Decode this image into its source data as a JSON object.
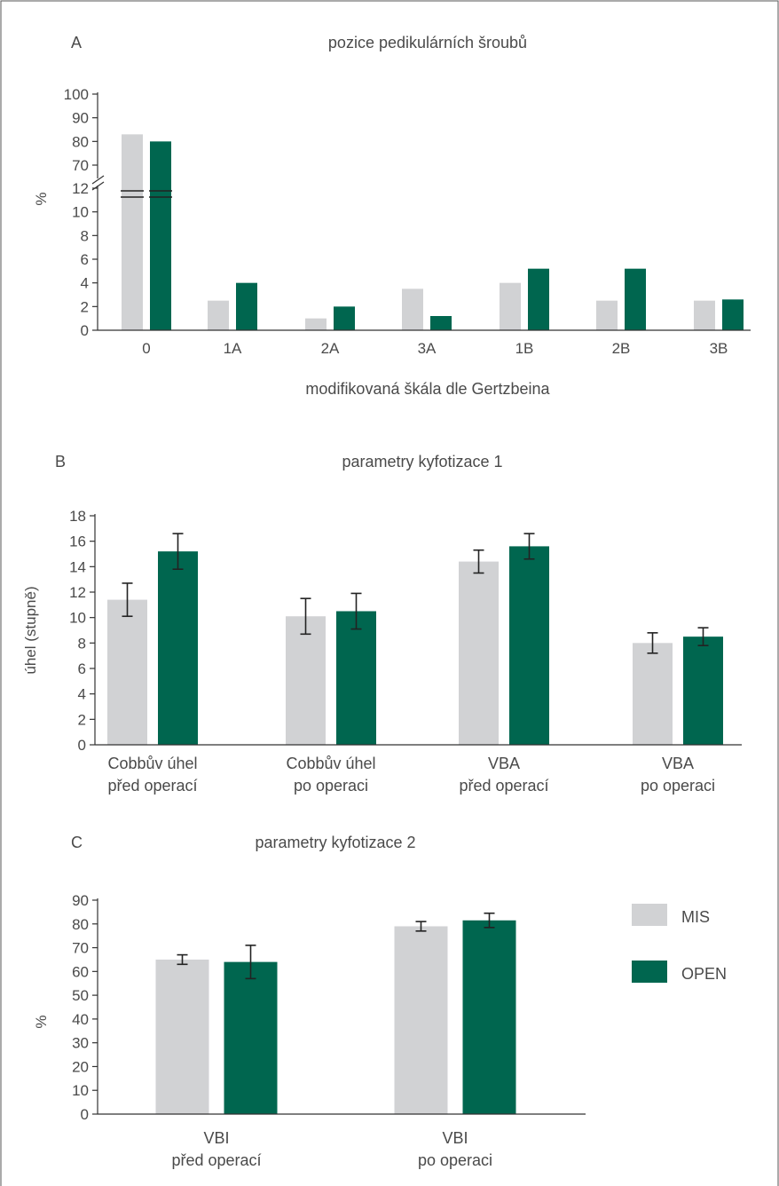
{
  "colors": {
    "MIS": "#d1d2d4",
    "OPEN": "#00664f",
    "axis": "#333333",
    "text": "#4a4a4a"
  },
  "legend": [
    {
      "key": "MIS",
      "label": "MIS",
      "color": "#d1d2d4"
    },
    {
      "key": "OPEN",
      "label": "OPEN",
      "color": "#00664f"
    }
  ],
  "chart_data": [
    {
      "panel": "A",
      "type": "bar",
      "title": "pozice pedikulárních šroubů",
      "xlabel": "modifikovaná škála dle Gertzbeina",
      "ylabel": "%",
      "categories": [
        "0",
        "1A",
        "2A",
        "3A",
        "1B",
        "2B",
        "3B"
      ],
      "series": [
        {
          "key": "MIS",
          "values": [
            83,
            2.5,
            1.0,
            3.5,
            4.0,
            2.5,
            2.5
          ]
        },
        {
          "key": "OPEN",
          "values": [
            80,
            4.0,
            2.0,
            1.2,
            5.2,
            5.2,
            2.6
          ]
        }
      ],
      "y_break": {
        "lower": [
          0,
          12
        ],
        "upper": [
          70,
          100
        ]
      },
      "yticks_lower": [
        "0",
        "2",
        "4",
        "6",
        "8",
        "10",
        "12"
      ],
      "yticks_upper": [
        "70",
        "80",
        "90",
        "100"
      ]
    },
    {
      "panel": "B",
      "type": "bar",
      "title": "parametry kyfotizace 1",
      "ylabel": "úhel (stupně)",
      "ylim": [
        0,
        18
      ],
      "yticks": [
        "0",
        "2",
        "4",
        "6",
        "8",
        "10",
        "12",
        "14",
        "16",
        "18"
      ],
      "categories": [
        [
          "Cobbův úhel",
          "před operací"
        ],
        [
          "Cobbův úhel",
          "po operaci"
        ],
        [
          "VBA",
          "před operací"
        ],
        [
          "VBA",
          "po operaci"
        ]
      ],
      "series": [
        {
          "key": "MIS",
          "values": [
            11.4,
            10.1,
            14.4,
            8.0
          ],
          "errors": [
            1.3,
            1.4,
            0.9,
            0.8
          ]
        },
        {
          "key": "OPEN",
          "values": [
            15.2,
            10.5,
            15.6,
            8.5
          ],
          "errors": [
            1.4,
            1.4,
            1.0,
            0.7
          ]
        }
      ]
    },
    {
      "panel": "C",
      "type": "bar",
      "title": "parametry kyfotizace 2",
      "ylabel": "%",
      "ylim": [
        0,
        90
      ],
      "yticks": [
        "0",
        "10",
        "20",
        "30",
        "40",
        "50",
        "60",
        "70",
        "80",
        "90"
      ],
      "categories": [
        [
          "VBI",
          "před operací"
        ],
        [
          "VBI",
          "po operaci"
        ]
      ],
      "series": [
        {
          "key": "MIS",
          "values": [
            65,
            79
          ],
          "errors": [
            2,
            2
          ]
        },
        {
          "key": "OPEN",
          "values": [
            64,
            81.5
          ],
          "errors": [
            7,
            3
          ]
        }
      ]
    }
  ]
}
